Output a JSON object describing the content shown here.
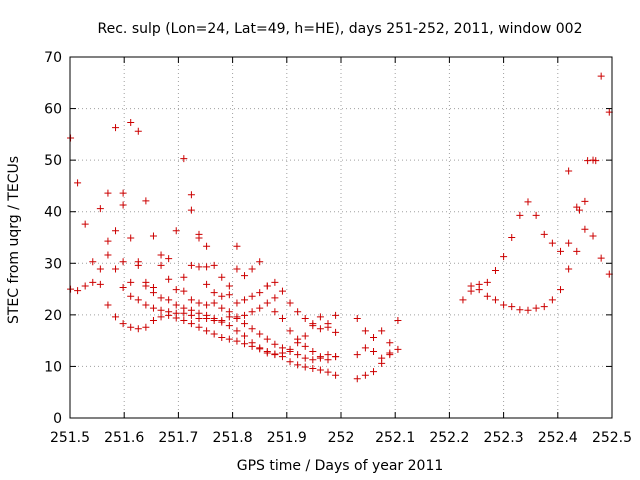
{
  "chart_data": {
    "type": "scatter",
    "title": "Rec. sulp (Lon=24, Lat=49, h=HE), days 251-252, 2011, window 002",
    "xlabel": "GPS time / Days of year 2011",
    "ylabel": "STEC from uqrg / TECUs",
    "xlim": [
      251.5,
      252.5
    ],
    "ylim": [
      0,
      70
    ],
    "xticks": [
      251.5,
      251.6,
      251.7,
      251.8,
      251.9,
      252.0,
      252.1,
      252.2,
      252.3,
      252.4,
      252.5
    ],
    "xtick_labels": [
      "251.5",
      "251.6",
      "251.7",
      "251.8",
      "251.9",
      "252",
      "252.1",
      "252.2",
      "252.3",
      "252.4",
      "252.5"
    ],
    "yticks": [
      0,
      10,
      20,
      30,
      40,
      50,
      60,
      70
    ],
    "ytick_labels": [
      "0",
      "10",
      "20",
      "30",
      "40",
      "50",
      "60",
      "70"
    ],
    "grid": true,
    "marker": "+",
    "marker_color": "#cc0000",
    "points": [
      [
        251.501,
        54.3
      ],
      [
        251.514,
        45.6
      ],
      [
        251.528,
        37.6
      ],
      [
        251.542,
        30.3
      ],
      [
        251.556,
        40.6
      ],
      [
        251.57,
        43.6
      ],
      [
        251.584,
        56.3
      ],
      [
        251.598,
        43.6
      ],
      [
        251.612,
        57.3
      ],
      [
        251.626,
        55.6
      ],
      [
        251.64,
        42.1
      ],
      [
        251.654,
        35.3
      ],
      [
        251.668,
        31.6
      ],
      [
        251.501,
        25.0
      ],
      [
        251.514,
        24.7
      ],
      [
        251.528,
        25.6
      ],
      [
        251.542,
        26.3
      ],
      [
        251.556,
        25.9
      ],
      [
        251.57,
        21.9
      ],
      [
        251.584,
        19.6
      ],
      [
        251.598,
        18.3
      ],
      [
        251.612,
        17.6
      ],
      [
        251.626,
        17.3
      ],
      [
        251.64,
        17.6
      ],
      [
        251.654,
        18.9
      ],
      [
        251.668,
        19.6
      ],
      [
        251.682,
        19.9
      ],
      [
        251.696,
        19.4
      ],
      [
        251.71,
        18.9
      ],
      [
        251.724,
        18.3
      ],
      [
        251.738,
        17.6
      ],
      [
        251.752,
        16.9
      ],
      [
        251.766,
        16.3
      ],
      [
        251.78,
        15.6
      ],
      [
        251.794,
        15.3
      ],
      [
        251.808,
        14.9
      ],
      [
        251.822,
        14.4
      ],
      [
        251.836,
        13.9
      ],
      [
        251.85,
        13.4
      ],
      [
        251.864,
        12.9
      ],
      [
        251.878,
        12.4
      ],
      [
        251.892,
        11.9
      ],
      [
        251.906,
        10.9
      ],
      [
        251.92,
        10.3
      ],
      [
        251.934,
        9.9
      ],
      [
        251.948,
        9.6
      ],
      [
        251.962,
        9.3
      ],
      [
        251.976,
        8.9
      ],
      [
        251.99,
        8.3
      ],
      [
        252.03,
        7.6
      ],
      [
        252.045,
        8.3
      ],
      [
        252.06,
        9.0
      ],
      [
        252.075,
        10.6
      ],
      [
        252.09,
        12.3
      ],
      [
        252.105,
        13.3
      ],
      [
        251.556,
        28.9
      ],
      [
        251.57,
        31.6
      ],
      [
        251.584,
        28.9
      ],
      [
        251.598,
        25.3
      ],
      [
        251.612,
        23.6
      ],
      [
        251.626,
        22.9
      ],
      [
        251.64,
        21.9
      ],
      [
        251.654,
        21.3
      ],
      [
        251.668,
        20.9
      ],
      [
        251.682,
        20.6
      ],
      [
        251.696,
        20.3
      ],
      [
        251.71,
        20.3
      ],
      [
        251.724,
        19.9
      ],
      [
        251.738,
        19.3
      ],
      [
        251.752,
        19.3
      ],
      [
        251.766,
        18.9
      ],
      [
        251.78,
        18.6
      ],
      [
        251.794,
        17.9
      ],
      [
        251.808,
        16.9
      ],
      [
        251.822,
        15.9
      ],
      [
        251.836,
        14.6
      ],
      [
        251.85,
        13.6
      ],
      [
        251.864,
        12.6
      ],
      [
        251.878,
        12.3
      ],
      [
        251.892,
        12.6
      ],
      [
        251.906,
        13.3
      ],
      [
        251.92,
        14.6
      ],
      [
        251.934,
        15.9
      ],
      [
        251.948,
        17.9
      ],
      [
        251.962,
        19.6
      ],
      [
        251.976,
        18.3
      ],
      [
        251.99,
        16.6
      ],
      [
        251.57,
        34.3
      ],
      [
        251.584,
        36.3
      ],
      [
        251.598,
        41.3
      ],
      [
        251.612,
        34.9
      ],
      [
        251.626,
        29.6
      ],
      [
        251.64,
        26.3
      ],
      [
        251.654,
        24.3
      ],
      [
        251.668,
        23.3
      ],
      [
        251.682,
        22.9
      ],
      [
        251.696,
        21.9
      ],
      [
        251.71,
        21.3
      ],
      [
        251.724,
        20.9
      ],
      [
        251.738,
        20.3
      ],
      [
        251.752,
        19.9
      ],
      [
        251.766,
        19.3
      ],
      [
        251.78,
        18.9
      ],
      [
        251.794,
        19.6
      ],
      [
        251.808,
        19.3
      ],
      [
        251.822,
        19.9
      ],
      [
        251.836,
        20.6
      ],
      [
        251.85,
        21.3
      ],
      [
        251.864,
        22.3
      ],
      [
        251.878,
        20.6
      ],
      [
        251.892,
        19.3
      ],
      [
        251.906,
        16.9
      ],
      [
        251.92,
        15.3
      ],
      [
        251.934,
        13.9
      ],
      [
        251.948,
        12.9
      ],
      [
        251.962,
        11.9
      ],
      [
        251.976,
        11.3
      ],
      [
        251.99,
        11.9
      ],
      [
        251.598,
        30.3
      ],
      [
        251.612,
        26.3
      ],
      [
        251.626,
        30.3
      ],
      [
        251.64,
        25.6
      ],
      [
        251.654,
        25.3
      ],
      [
        251.668,
        29.6
      ],
      [
        251.682,
        26.9
      ],
      [
        251.696,
        24.9
      ],
      [
        251.71,
        24.6
      ],
      [
        251.724,
        22.9
      ],
      [
        251.738,
        22.3
      ],
      [
        251.752,
        21.9
      ],
      [
        251.766,
        22.3
      ],
      [
        251.78,
        21.3
      ],
      [
        251.794,
        20.6
      ],
      [
        251.808,
        19.6
      ],
      [
        251.822,
        18.3
      ],
      [
        251.836,
        17.3
      ],
      [
        251.85,
        16.3
      ],
      [
        251.864,
        15.3
      ],
      [
        251.878,
        14.3
      ],
      [
        251.892,
        13.6
      ],
      [
        251.906,
        12.9
      ],
      [
        251.92,
        12.3
      ],
      [
        251.934,
        11.6
      ],
      [
        251.948,
        11.3
      ],
      [
        251.962,
        11.6
      ],
      [
        251.976,
        12.3
      ],
      [
        251.99,
        11.9
      ],
      [
        251.682,
        30.9
      ],
      [
        251.696,
        36.3
      ],
      [
        251.71,
        50.3
      ],
      [
        251.724,
        43.3
      ],
      [
        251.724,
        40.3
      ],
      [
        251.738,
        34.9
      ],
      [
        251.738,
        35.6
      ],
      [
        251.752,
        33.3
      ],
      [
        251.752,
        29.3
      ],
      [
        251.766,
        29.6
      ],
      [
        251.78,
        27.3
      ],
      [
        251.794,
        25.6
      ],
      [
        251.808,
        33.3
      ],
      [
        251.808,
        28.9
      ],
      [
        251.822,
        27.6
      ],
      [
        251.836,
        28.9
      ],
      [
        251.85,
        30.3
      ],
      [
        251.864,
        25.6
      ],
      [
        251.878,
        26.3
      ],
      [
        251.892,
        24.6
      ],
      [
        251.906,
        22.3
      ],
      [
        251.92,
        20.6
      ],
      [
        251.934,
        19.3
      ],
      [
        251.948,
        18.3
      ],
      [
        251.962,
        17.3
      ],
      [
        251.976,
        17.6
      ],
      [
        251.99,
        19.9
      ],
      [
        251.71,
        27.3
      ],
      [
        251.724,
        29.6
      ],
      [
        251.738,
        29.3
      ],
      [
        251.752,
        25.9
      ],
      [
        251.766,
        24.3
      ],
      [
        251.78,
        23.6
      ],
      [
        251.794,
        23.9
      ],
      [
        251.808,
        22.3
      ],
      [
        251.822,
        22.9
      ],
      [
        251.836,
        23.6
      ],
      [
        251.85,
        24.3
      ],
      [
        251.864,
        25.6
      ],
      [
        251.878,
        23.3
      ],
      [
        252.03,
        19.3
      ],
      [
        252.045,
        16.9
      ],
      [
        252.06,
        15.6
      ],
      [
        252.075,
        16.9
      ],
      [
        252.09,
        14.6
      ],
      [
        252.105,
        18.9
      ],
      [
        252.03,
        12.3
      ],
      [
        252.045,
        13.6
      ],
      [
        252.06,
        12.9
      ],
      [
        252.075,
        11.6
      ],
      [
        252.09,
        12.6
      ],
      [
        252.225,
        22.9
      ],
      [
        252.24,
        24.6
      ],
      [
        252.255,
        25.9
      ],
      [
        252.27,
        26.3
      ],
      [
        252.285,
        28.6
      ],
      [
        252.3,
        31.3
      ],
      [
        252.315,
        35.0
      ],
      [
        252.33,
        39.3
      ],
      [
        252.345,
        41.9
      ],
      [
        252.36,
        39.3
      ],
      [
        252.375,
        35.6
      ],
      [
        252.39,
        33.9
      ],
      [
        252.405,
        32.3
      ],
      [
        252.42,
        33.9
      ],
      [
        252.435,
        40.9
      ],
      [
        252.45,
        42.0
      ],
      [
        252.465,
        50.0
      ],
      [
        252.48,
        66.3
      ],
      [
        252.495,
        59.3
      ],
      [
        252.24,
        25.6
      ],
      [
        252.255,
        24.9
      ],
      [
        252.27,
        23.6
      ],
      [
        252.285,
        22.9
      ],
      [
        252.3,
        21.9
      ],
      [
        252.315,
        21.6
      ],
      [
        252.33,
        21.0
      ],
      [
        252.345,
        20.9
      ],
      [
        252.36,
        21.3
      ],
      [
        252.375,
        21.6
      ],
      [
        252.39,
        22.9
      ],
      [
        252.405,
        24.9
      ],
      [
        252.42,
        28.9
      ],
      [
        252.435,
        32.3
      ],
      [
        252.45,
        36.6
      ],
      [
        252.465,
        35.3
      ],
      [
        252.48,
        31.0
      ],
      [
        252.495,
        27.9
      ],
      [
        252.42,
        47.9
      ],
      [
        252.44,
        40.3
      ],
      [
        252.455,
        49.9
      ],
      [
        252.47,
        49.9
      ]
    ]
  }
}
